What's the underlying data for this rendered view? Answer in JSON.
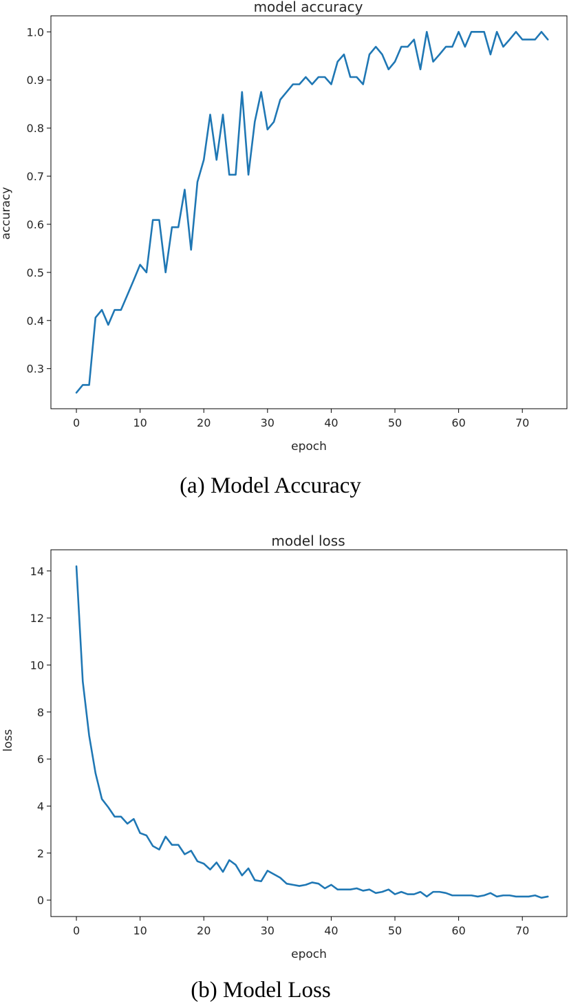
{
  "chart_data": [
    {
      "type": "line",
      "title": "model accuracy",
      "xlabel": "epoch",
      "ylabel": "accuracy",
      "caption": "(a) Model Accuracy",
      "xlim": [
        -4,
        77
      ],
      "ylim": [
        0.2166,
        1.0333
      ],
      "xticks": [
        0,
        10,
        20,
        30,
        40,
        50,
        60,
        70
      ],
      "yticks": [
        0.3,
        0.4,
        0.5,
        0.6,
        0.7,
        0.8,
        0.9,
        1.0
      ],
      "ytick_labels": [
        "0.3",
        "0.4",
        "0.5",
        "0.6",
        "0.7",
        "0.8",
        "0.9",
        "1.0"
      ],
      "grid": false,
      "color": "#1f77b4",
      "series": [
        {
          "x_start": 0,
          "values": [
            0.25,
            0.266,
            0.266,
            0.406,
            0.422,
            0.391,
            0.422,
            0.422,
            0.453,
            0.484,
            0.516,
            0.5,
            0.609,
            0.609,
            0.5,
            0.594,
            0.594,
            0.672,
            0.547,
            0.688,
            0.734,
            0.828,
            0.734,
            0.828,
            0.703,
            0.703,
            0.875,
            0.703,
            0.813,
            0.875,
            0.797,
            0.813,
            0.859,
            0.875,
            0.891,
            0.891,
            0.906,
            0.891,
            0.906,
            0.906,
            0.891,
            0.938,
            0.953,
            0.906,
            0.906,
            0.891,
            0.953,
            0.969,
            0.953,
            0.922,
            0.938,
            0.969,
            0.969,
            0.984,
            0.922,
            1.0,
            0.938,
            0.953,
            0.969,
            0.969,
            1.0,
            0.969,
            1.0,
            1.0,
            1.0,
            0.953,
            1.0,
            0.969,
            0.984,
            1.0,
            0.984,
            0.984,
            0.984,
            1.0,
            0.984
          ]
        }
      ]
    },
    {
      "type": "line",
      "title": "model loss",
      "xlabel": "epoch",
      "ylabel": "loss",
      "caption": "(b) Model Loss",
      "xlim": [
        -4,
        77
      ],
      "ylim": [
        -0.7,
        14.9
      ],
      "xticks": [
        0,
        10,
        20,
        30,
        40,
        50,
        60,
        70
      ],
      "yticks": [
        0,
        2,
        4,
        6,
        8,
        10,
        12,
        14
      ],
      "ytick_labels": [
        "0",
        "2",
        "4",
        "6",
        "8",
        "10",
        "12",
        "14"
      ],
      "grid": false,
      "color": "#1f77b4",
      "series": [
        {
          "x_start": 0,
          "values": [
            14.2,
            9.3,
            7.0,
            5.4,
            4.3,
            3.95,
            3.55,
            3.55,
            3.25,
            3.45,
            2.85,
            2.75,
            2.3,
            2.15,
            2.7,
            2.35,
            2.35,
            1.95,
            2.1,
            1.65,
            1.55,
            1.3,
            1.6,
            1.2,
            1.7,
            1.5,
            1.05,
            1.35,
            0.85,
            0.8,
            1.25,
            1.1,
            0.95,
            0.7,
            0.65,
            0.6,
            0.65,
            0.75,
            0.7,
            0.5,
            0.65,
            0.45,
            0.45,
            0.45,
            0.5,
            0.4,
            0.45,
            0.3,
            0.35,
            0.45,
            0.25,
            0.35,
            0.25,
            0.25,
            0.35,
            0.15,
            0.35,
            0.35,
            0.3,
            0.2,
            0.2,
            0.2,
            0.2,
            0.15,
            0.2,
            0.3,
            0.15,
            0.2,
            0.2,
            0.15,
            0.15,
            0.15,
            0.2,
            0.1,
            0.15
          ]
        }
      ]
    }
  ]
}
